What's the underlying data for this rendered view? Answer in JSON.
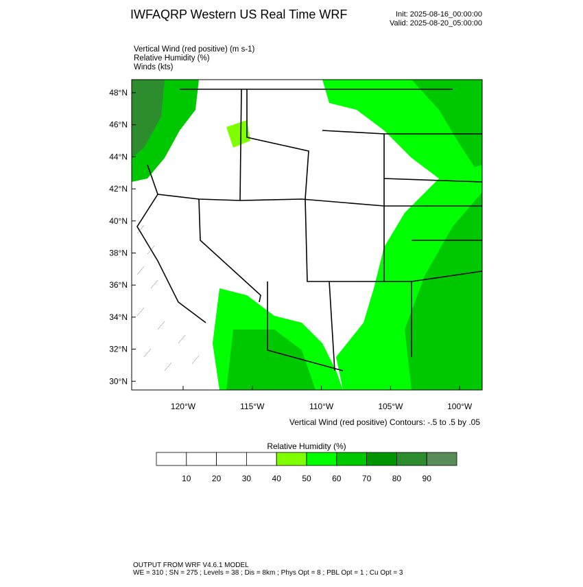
{
  "header": {
    "title": "IWFAQRP Western US Real Time WRF",
    "init": "Init: 2025-08-16_00:00:00",
    "valid": "Valid: 2025-08-20_05:00:00"
  },
  "fields": [
    "Vertical Wind (red positive)   (m s-1)",
    "Relative Humidity   (%)",
    "Winds   (kts)"
  ],
  "map": {
    "lat_labels": [
      "48°N",
      "46°N",
      "44°N",
      "42°N",
      "40°N",
      "38°N",
      "36°N",
      "34°N",
      "32°N",
      "30°N"
    ],
    "lon_labels": [
      "120°W",
      "115°W",
      "110°W",
      "105°W",
      "100°W"
    ],
    "contour_note": "Vertical Wind (red positive) Contours: -.5 to .5 by .05"
  },
  "colorbar": {
    "title": "Relative Humidity  (%)",
    "colors": [
      "#ffffff",
      "#ffffff",
      "#ffffff",
      "#ffffff",
      "#80ff00",
      "#00ff00",
      "#00c800",
      "#009600",
      "#2d8c2d",
      "#5a8c5a"
    ],
    "labels": [
      10,
      20,
      30,
      40,
      50,
      60,
      70,
      80,
      90
    ]
  },
  "footer": [
    "OUTPUT FROM WRF V4.6.1 MODEL",
    "WE = 310 ; SN = 275 ; Levels = 38 ; Dis = 8km ; Phys Opt = 8 ; PBL Opt = 1 ; Cu Opt = 3"
  ]
}
